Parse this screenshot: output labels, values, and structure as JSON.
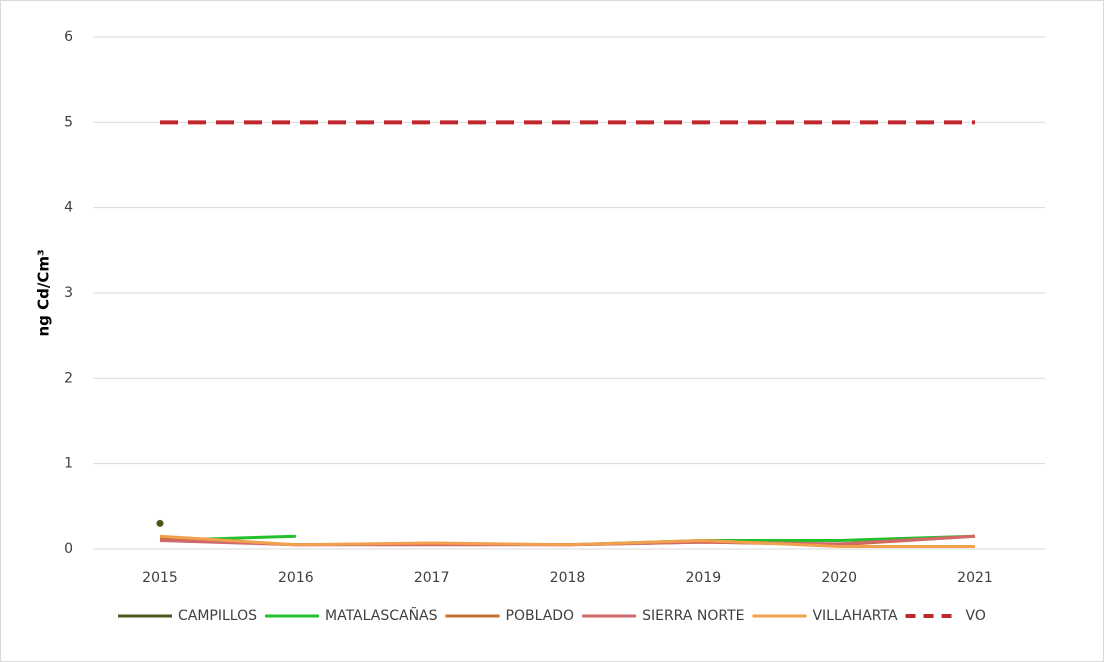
{
  "chart_data": {
    "type": "line",
    "y_label": "ng Cd/Cm³",
    "categories": [
      "2015",
      "2016",
      "2017",
      "2018",
      "2019",
      "2020",
      "2021"
    ],
    "series": [
      {
        "name": "CAMPILLOS",
        "color": "#4b5a1c",
        "values": [
          0.3,
          null,
          null,
          null,
          null,
          null,
          null
        ]
      },
      {
        "name": "MATALASCAÑAS",
        "color": "#22c02a",
        "values": [
          0.1,
          0.15,
          null,
          0.05,
          0.1,
          0.1,
          0.15
        ]
      },
      {
        "name": "POBLADO",
        "color": "#c8702a",
        "values": [
          0.12,
          0.05,
          0.06,
          0.05,
          0.08,
          0.05,
          0.15
        ]
      },
      {
        "name": "SIERRA NORTE",
        "color": "#d06a6a",
        "values": [
          0.1,
          0.05,
          0.05,
          0.05,
          0.08,
          0.06,
          0.15
        ]
      },
      {
        "name": "VILLAHARTA",
        "color": "#f3a04e",
        "values": [
          0.15,
          0.05,
          0.07,
          0.05,
          0.1,
          0.03,
          0.03
        ]
      },
      {
        "name": "VO",
        "color": "#c0272d",
        "dashed": true,
        "values": [
          5,
          5,
          5,
          5,
          5,
          5,
          5
        ]
      }
    ],
    "ylim": [
      0,
      6
    ],
    "yticks": [
      0,
      1,
      2,
      3,
      4,
      5,
      6
    ],
    "grid": true,
    "legend": "bottom"
  }
}
